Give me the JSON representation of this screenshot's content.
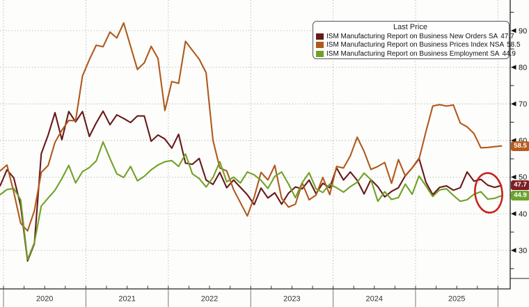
{
  "chart_data": {
    "type": "line",
    "frequency": "monthly",
    "period_start": "2019-12",
    "period_end": "2026-01",
    "legend_title": "Last Price",
    "legend_position": "top-right",
    "grid": true,
    "x_axis": {
      "year_labels": [
        "2020",
        "2021",
        "2022",
        "2023",
        "2024",
        "2025"
      ],
      "minor_tick_months": 3
    },
    "y_axis": {
      "side": "right",
      "ticks": [
        30,
        40,
        50,
        60,
        70,
        80,
        90
      ],
      "minor_ticks": [
        25,
        35,
        45,
        55,
        65,
        75,
        85,
        95
      ],
      "ylim": [
        19.5,
        98.5
      ]
    },
    "series": [
      {
        "id": "new-orders",
        "name": "ISM Manufacturing Report on Business New Orders SA",
        "last_label": "47.7",
        "color": "#661a1a",
        "badge_color": "#7d1f26",
        "values": [
          47.6,
          52.0,
          49.8,
          42.2,
          27.1,
          31.8,
          56.4,
          61.5,
          67.6,
          60.2,
          67.9,
          65.1,
          67.9,
          61.1,
          64.8,
          68.0,
          64.3,
          67.0,
          66.0,
          64.9,
          66.7,
          66.7,
          59.8,
          61.5,
          60.4,
          57.9,
          61.7,
          53.8,
          53.5,
          55.1,
          49.2,
          48.0,
          51.3,
          47.1,
          49.2,
          47.2,
          45.2,
          42.5,
          47.0,
          44.3,
          45.7,
          42.6,
          45.6,
          47.3,
          46.8,
          49.2,
          45.5,
          48.3,
          47.1,
          52.5,
          49.2,
          51.4,
          49.1,
          45.4,
          49.3,
          47.4,
          44.6,
          46.1,
          47.1,
          50.4,
          52.5,
          55.1,
          48.6,
          45.2,
          47.2,
          47.6,
          46.4,
          47.1,
          51.4,
          48.9,
          49.4,
          47.8,
          47.2,
          47.7
        ]
      },
      {
        "id": "prices",
        "name": "ISM Manufacturing Report on Business Prices Index NSA",
        "last_label": "58.5",
        "color": "#b0591d",
        "badge_color": "#b65d1f",
        "values": [
          51.7,
          53.3,
          45.9,
          37.4,
          35.3,
          40.8,
          51.3,
          53.2,
          59.5,
          62.8,
          65.5,
          65.4,
          77.6,
          82.1,
          86.0,
          85.6,
          89.6,
          88.0,
          92.1,
          85.7,
          79.4,
          81.2,
          85.7,
          82.4,
          68.2,
          76.1,
          75.6,
          87.1,
          84.6,
          82.2,
          78.5,
          60.0,
          52.5,
          51.7,
          46.6,
          43.0,
          39.4,
          44.5,
          51.3,
          49.2,
          53.2,
          44.2,
          41.8,
          42.6,
          48.4,
          43.8,
          45.1,
          49.9,
          45.2,
          52.9,
          52.5,
          55.8,
          60.9,
          57.0,
          52.1,
          52.9,
          54.0,
          48.3,
          54.8,
          50.3,
          52.5,
          54.9,
          62.4,
          69.4,
          69.8,
          69.4,
          69.7,
          64.8,
          63.7,
          61.9,
          58.0,
          58.1,
          58.3,
          58.5
        ]
      },
      {
        "id": "employment",
        "name": "ISM Manufacturing Report on Business Employment SA",
        "last_label": "44.9",
        "color": "#71a028",
        "badge_color": "#6da32c",
        "values": [
          45.2,
          46.6,
          46.9,
          43.8,
          27.5,
          32.1,
          42.1,
          44.3,
          46.4,
          49.6,
          53.2,
          48.4,
          51.5,
          52.6,
          54.4,
          59.6,
          55.1,
          50.9,
          49.9,
          52.9,
          49.0,
          50.2,
          52.0,
          53.3,
          54.2,
          54.5,
          52.9,
          56.3,
          50.9,
          49.6,
          47.3,
          49.9,
          54.2,
          48.7,
          50.0,
          48.4,
          51.4,
          50.6,
          49.1,
          46.9,
          50.2,
          51.4,
          48.1,
          44.4,
          48.5,
          51.2,
          46.8,
          45.8,
          48.1,
          47.1,
          45.9,
          47.4,
          48.6,
          51.1,
          49.3,
          43.4,
          46.0,
          43.9,
          44.4,
          48.1,
          45.3,
          50.3,
          47.6,
          44.7,
          46.5,
          46.8,
          45.0,
          43.4,
          43.8,
          45.3,
          46.0,
          44.0,
          44.2,
          44.9
        ]
      }
    ],
    "annotation_circle": {
      "color": "#c8231f",
      "target": "latest New Orders and Employment data points"
    }
  }
}
